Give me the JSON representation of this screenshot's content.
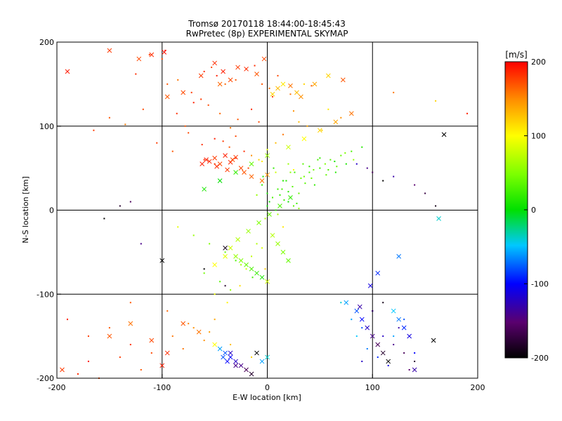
{
  "chart_data": {
    "type": "scatter",
    "title": "Tromsø 20170118 18:44:00-18:45:43",
    "subtitle": "RwPretec (8p) EXPERIMENTAL SKYMAP",
    "xlabel": "E-W location [km]",
    "ylabel": "N-S location [km]",
    "xlim": [
      -200,
      200
    ],
    "ylim": [
      -200,
      200
    ],
    "x_ticks": [
      "-200",
      "-100",
      "0",
      "100",
      "200"
    ],
    "y_ticks": [
      "-200",
      "-100",
      "0",
      "100",
      "200"
    ],
    "grid": true,
    "colorbar": {
      "label": "[m/s]",
      "range": [
        -200,
        200
      ],
      "ticks": [
        "-200",
        "-100",
        "0",
        "100",
        "200"
      ],
      "colormap": "rainbow (black-purple-blue-cyan-green-yellow-red)"
    },
    "markers": {
      "point": "dot",
      "cross": "x"
    },
    "series": [
      {
        "x": [
          -190,
          -125,
          -112,
          -100,
          -97,
          -95,
          -85,
          -72,
          -60,
          -53,
          -48,
          -40,
          -30,
          -20,
          -12,
          -5,
          2,
          10,
          22,
          35,
          42,
          58,
          70,
          120,
          160,
          190,
          -165,
          -150,
          -135,
          -118,
          -86,
          -78,
          -70,
          -63,
          -56,
          -45,
          -35,
          -28,
          -15,
          -8,
          5,
          15,
          25,
          30,
          38,
          52,
          -105,
          -90,
          -75,
          -62,
          -50,
          -42,
          -36,
          -30,
          -22,
          -15,
          -8,
          0,
          8,
          -60,
          -50,
          -30,
          -18,
          -5,
          8,
          20,
          25
        ],
        "y": [
          165,
          162,
          185,
          180,
          190,
          150,
          155,
          140,
          165,
          170,
          160,
          150,
          155,
          168,
          172,
          150,
          145,
          160,
          138,
          150,
          148,
          120,
          110,
          140,
          130,
          115,
          95,
          110,
          102,
          120,
          115,
          100,
          128,
          132,
          125,
          115,
          98,
          108,
          120,
          105,
          135,
          90,
          118,
          105,
          100,
          95,
          80,
          70,
          92,
          78,
          85,
          82,
          75,
          88,
          70,
          65,
          60,
          72,
          80,
          60,
          55,
          62,
          50,
          58,
          45,
          55,
          48
        ],
        "values": [
          190,
          185,
          180,
          175,
          195,
          170,
          160,
          180,
          185,
          175,
          190,
          165,
          170,
          180,
          185,
          170,
          165,
          175,
          160,
          120,
          170,
          110,
          150,
          160,
          120,
          190,
          180,
          170,
          160,
          175,
          185,
          170,
          190,
          180,
          175,
          165,
          160,
          170,
          185,
          175,
          180,
          160,
          150,
          130,
          140,
          120,
          180,
          170,
          175,
          185,
          190,
          180,
          170,
          175,
          185,
          150,
          120,
          90,
          130,
          185,
          180,
          190,
          175,
          110,
          80,
          60,
          100
        ],
        "marker": "point"
      },
      {
        "x": [
          -5,
          0,
          5,
          10,
          15,
          20,
          25,
          30,
          35,
          40,
          45,
          50,
          55,
          60,
          65,
          70,
          75,
          80,
          0,
          8,
          16,
          24,
          32,
          40,
          48,
          56,
          64,
          12,
          20,
          28,
          36,
          44,
          -4,
          6,
          14,
          22,
          30,
          -10,
          2,
          18,
          26,
          34,
          42,
          50,
          58,
          66,
          74,
          82,
          90,
          -2,
          10,
          22
        ],
        "y": [
          30,
          20,
          15,
          25,
          35,
          10,
          5,
          20,
          40,
          45,
          30,
          50,
          55,
          60,
          45,
          65,
          55,
          70,
          5,
          0,
          12,
          28,
          38,
          52,
          60,
          42,
          58,
          18,
          22,
          8,
          32,
          48,
          40,
          50,
          25,
          15,
          2,
          18,
          10,
          35,
          45,
          55,
          38,
          62,
          48,
          52,
          68,
          60,
          75,
          -10,
          -5,
          45
        ],
        "values": [
          20,
          10,
          30,
          25,
          15,
          5,
          35,
          40,
          45,
          30,
          20,
          25,
          50,
          35,
          15,
          40,
          10,
          30,
          5,
          15,
          25,
          35,
          45,
          20,
          30,
          40,
          10,
          20,
          15,
          25,
          35,
          45,
          10,
          20,
          30,
          40,
          50,
          60,
          5,
          15,
          25,
          35,
          45,
          20,
          30,
          40,
          50,
          60,
          15,
          70,
          65,
          55
        ],
        "marker": "point"
      },
      {
        "x": [
          -85,
          -70,
          -55,
          -40,
          -30,
          -20,
          -10,
          5,
          15,
          -60,
          -45,
          -35,
          -25,
          -15,
          -5,
          -50,
          -38,
          -26,
          -14,
          -2
        ],
        "y": [
          -20,
          -30,
          -40,
          -50,
          -60,
          -70,
          -40,
          -30,
          -20,
          -75,
          -85,
          -95,
          -65,
          -55,
          -45,
          -100,
          -110,
          -90,
          -80,
          -70
        ],
        "values": [
          90,
          60,
          50,
          40,
          30,
          80,
          70,
          100,
          110,
          45,
          35,
          55,
          65,
          75,
          85,
          95,
          105,
          115,
          25,
          125
        ],
        "marker": "point"
      },
      {
        "x": [
          -190,
          -170,
          -150,
          -130,
          -110,
          -90,
          -70,
          -50,
          -170,
          -140,
          -120,
          -100,
          -80,
          -60,
          -180,
          -160,
          -130,
          -95,
          -75,
          -55,
          -35,
          -15
        ],
        "y": [
          -130,
          -150,
          -140,
          -160,
          -170,
          -150,
          -140,
          -130,
          -180,
          -175,
          -190,
          -185,
          -165,
          -155,
          -195,
          -200,
          -110,
          -120,
          -135,
          -145,
          -160,
          -175
        ],
        "values": [
          190,
          180,
          170,
          185,
          175,
          160,
          150,
          140,
          195,
          180,
          170,
          190,
          160,
          150,
          185,
          175,
          170,
          165,
          155,
          145,
          130,
          120
        ],
        "marker": "point"
      },
      {
        "x": [
          70,
          80,
          90,
          100,
          110,
          120,
          130,
          140,
          85,
          95,
          105,
          115,
          125,
          135,
          100,
          110,
          120,
          130,
          140,
          90,
          -155,
          -140,
          -130,
          -120,
          -60,
          -40,
          160,
          150,
          140,
          120,
          110,
          100,
          95,
          85
        ],
        "y": [
          -110,
          -130,
          -140,
          -120,
          -150,
          -160,
          -170,
          -180,
          -150,
          -165,
          -175,
          -185,
          -140,
          -190,
          -120,
          -110,
          -150,
          -130,
          -170,
          -180,
          -10,
          5,
          10,
          -40,
          -70,
          -90,
          5,
          20,
          30,
          40,
          35,
          45,
          50,
          55
        ],
        "values": [
          -40,
          -60,
          -80,
          -100,
          -120,
          -140,
          -160,
          -180,
          -50,
          -70,
          -90,
          -110,
          -130,
          -150,
          -170,
          -190,
          -60,
          -80,
          -100,
          -120,
          -200,
          -180,
          -160,
          -140,
          -200,
          -180,
          -190,
          -170,
          -150,
          -130,
          -200,
          -160,
          -140,
          -120
        ],
        "marker": "point"
      },
      {
        "x": [
          -190,
          -150,
          -122,
          -110,
          -98,
          -95,
          -80,
          -63,
          -50,
          -45,
          -42,
          -35,
          -28,
          -20,
          -10,
          -3,
          5,
          10,
          15,
          22,
          28,
          32,
          45,
          58,
          72,
          -58,
          -55,
          -50,
          -45,
          -40,
          -35,
          -30,
          -25,
          -62,
          -48,
          -38,
          -33,
          -22,
          -15,
          -5,
          0
        ],
        "y": [
          165,
          190,
          180,
          185,
          188,
          135,
          140,
          160,
          175,
          150,
          165,
          155,
          170,
          168,
          162,
          180,
          138,
          145,
          150,
          148,
          140,
          135,
          150,
          160,
          155,
          60,
          58,
          62,
          55,
          65,
          57,
          63,
          50,
          55,
          52,
          48,
          60,
          45,
          40,
          35,
          42
        ],
        "values": [
          190,
          180,
          175,
          185,
          195,
          170,
          175,
          180,
          185,
          165,
          190,
          175,
          180,
          185,
          170,
          175,
          120,
          130,
          110,
          160,
          130,
          150,
          140,
          120,
          170,
          190,
          185,
          180,
          175,
          190,
          185,
          180,
          175,
          190,
          185,
          180,
          175,
          170,
          165,
          160,
          150
        ],
        "marker": "cross"
      },
      {
        "x": [
          -100,
          -40,
          -30,
          -25,
          -20,
          -15,
          -10,
          -5,
          0,
          5,
          10,
          15,
          20,
          -50,
          -40,
          -35,
          -28,
          -18,
          -8,
          2,
          12,
          22,
          -60,
          -45,
          -30,
          -15,
          0,
          20,
          35,
          50,
          65,
          80
        ],
        "y": [
          -60,
          -45,
          -55,
          -60,
          -65,
          -70,
          -75,
          -80,
          -85,
          -30,
          -40,
          -50,
          -60,
          -65,
          -55,
          -45,
          -35,
          -25,
          -15,
          -5,
          5,
          15,
          25,
          35,
          45,
          55,
          65,
          75,
          85,
          95,
          105,
          115
        ],
        "values": [
          -200,
          -190,
          60,
          50,
          40,
          30,
          20,
          10,
          80,
          70,
          60,
          50,
          40,
          100,
          90,
          80,
          70,
          60,
          50,
          40,
          30,
          20,
          10,
          0,
          20,
          40,
          60,
          80,
          100,
          120,
          140,
          160
        ],
        "marker": "cross"
      },
      {
        "x": [
          -195,
          -150,
          -130,
          -110,
          -100,
          -95,
          -80,
          -65,
          -50,
          -40,
          -35,
          -30,
          -25,
          -20,
          -15,
          -10,
          -5,
          0,
          75,
          85,
          90,
          95,
          100,
          105,
          110,
          115,
          120,
          125,
          130,
          135,
          140,
          -45,
          -42,
          -38,
          -35,
          -30,
          158,
          163,
          168,
          125,
          105,
          98,
          88
        ],
        "y": [
          -190,
          -150,
          -135,
          -155,
          -185,
          -170,
          -135,
          -145,
          -160,
          -170,
          -175,
          -180,
          -185,
          -190,
          -195,
          -170,
          -180,
          -175,
          -110,
          -120,
          -130,
          -140,
          -150,
          -160,
          -170,
          -180,
          -120,
          -130,
          -140,
          -150,
          -190,
          -165,
          -175,
          -180,
          -170,
          -185,
          -155,
          -10,
          90,
          -55,
          -75,
          -90,
          -115
        ],
        "values": [
          180,
          170,
          160,
          175,
          190,
          185,
          170,
          160,
          100,
          -80,
          -100,
          -120,
          -140,
          -160,
          -180,
          -200,
          -60,
          -40,
          -60,
          -80,
          -100,
          -120,
          -140,
          -160,
          -180,
          -200,
          -50,
          -70,
          -90,
          -110,
          -130,
          -60,
          -80,
          -100,
          -120,
          -140,
          -200,
          -40,
          -200,
          -70,
          -90,
          -110,
          -130
        ],
        "marker": "cross"
      }
    ]
  }
}
